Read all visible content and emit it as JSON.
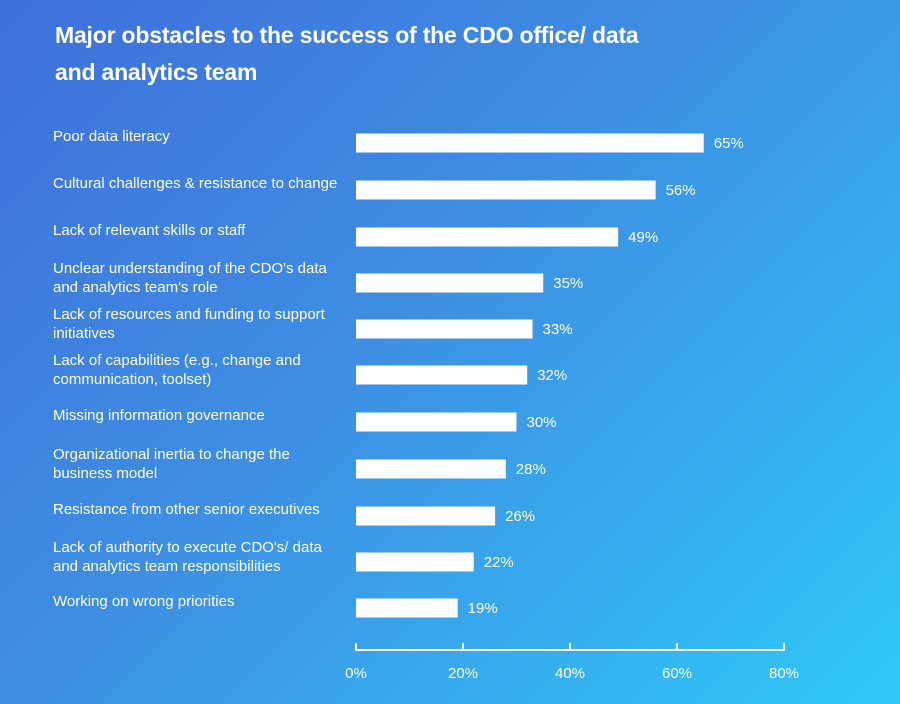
{
  "chart_data": {
    "type": "bar",
    "orientation": "horizontal",
    "title": "Major obstacles to the success of the CDO office/ data and analytics team",
    "categories": [
      "Poor data literacy",
      "Cultural challenges & resistance to change",
      "Lack of relevant skills or staff",
      "Unclear understanding of the CDO's data and analytics team's role",
      "Lack of resources and funding to support initiatives",
      "Lack of capabilities (e.g., change and communication, toolset)",
      "Missing information governance",
      "Organizational inertia to change the business model",
      "Resistance from other senior executives",
      "Lack of authority to execute CDO's/ data and analytics team responsibilities",
      "Working on wrong priorities"
    ],
    "values": [
      65,
      56,
      49,
      35,
      33,
      32,
      30,
      28,
      26,
      22,
      19
    ],
    "value_labels": [
      "65%",
      "56%",
      "49%",
      "35%",
      "33%",
      "32%",
      "30%",
      "28%",
      "26%",
      "22%",
      "19%"
    ],
    "xlim": [
      0,
      80
    ],
    "xticks": [
      0,
      20,
      40,
      60,
      80
    ],
    "xtick_labels": [
      "0%",
      "20%",
      "40%",
      "60%",
      "80%"
    ],
    "grid": false,
    "bar_color": "#ffffff",
    "text_color": "#ffffff",
    "background_gradient": [
      "#3f6fd9",
      "#2fc9f7"
    ]
  }
}
